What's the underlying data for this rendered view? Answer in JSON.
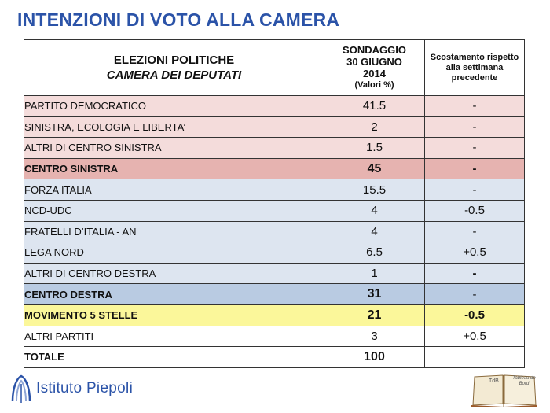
{
  "title": "INTENZIONI DI VOTO ALLA CAMERA",
  "header": {
    "col1_line1": "ELEZIONI POLITICHE",
    "col1_line2": "CAMERA DEI DEPUTATI",
    "col2_line1": "SONDAGGIO",
    "col2_line2": "30 GIUGNO",
    "col2_line3": "2014",
    "col2_line4": "(Valori %)",
    "col3": "Scostamento rispetto alla settimana precedente"
  },
  "rows": [
    {
      "name": "PARTITO DEMOCRATICO",
      "value": "41.5",
      "delta": "-"
    },
    {
      "name": "SINISTRA, ECOLOGIA E LIBERTA’",
      "value": "2",
      "delta": "-"
    },
    {
      "name": "ALTRI DI CENTRO SINISTRA",
      "value": "1.5",
      "delta": "-"
    },
    {
      "name": "CENTRO SINISTRA",
      "value": "45",
      "delta": "-"
    },
    {
      "name": "FORZA ITALIA",
      "value": "15.5",
      "delta": "-"
    },
    {
      "name": "NCD-UDC",
      "value": "4",
      "delta": "-0.5"
    },
    {
      "name": "FRATELLI D’ITALIA - AN",
      "value": "4",
      "delta": "-"
    },
    {
      "name": "LEGA NORD",
      "value": "6.5",
      "delta": "+0.5"
    },
    {
      "name": "ALTRI DI CENTRO DESTRA",
      "value": "1",
      "delta": "-"
    },
    {
      "name": "CENTRO DESTRA",
      "value": "31",
      "delta": "-"
    },
    {
      "name": "MOVIMENTO 5 STELLE",
      "value": "21",
      "delta": "-0.5"
    },
    {
      "name": "ALTRI PARTITI",
      "value": "3",
      "delta": "+0.5"
    },
    {
      "name": "TOTALE",
      "value": "100",
      "delta": ""
    }
  ],
  "footer": {
    "logo_text": "Istituto Piepoli",
    "book_label_left": "TdB",
    "book_label_right": "Tableau de Bord"
  },
  "colors": {
    "title": "#2b53a8",
    "center_left_rows": "#f4dcdb",
    "center_left_total": "#e6b3b0",
    "center_right_rows": "#dde5f0",
    "center_right_total": "#b9cbe2",
    "m5s": "#fbf79a"
  }
}
